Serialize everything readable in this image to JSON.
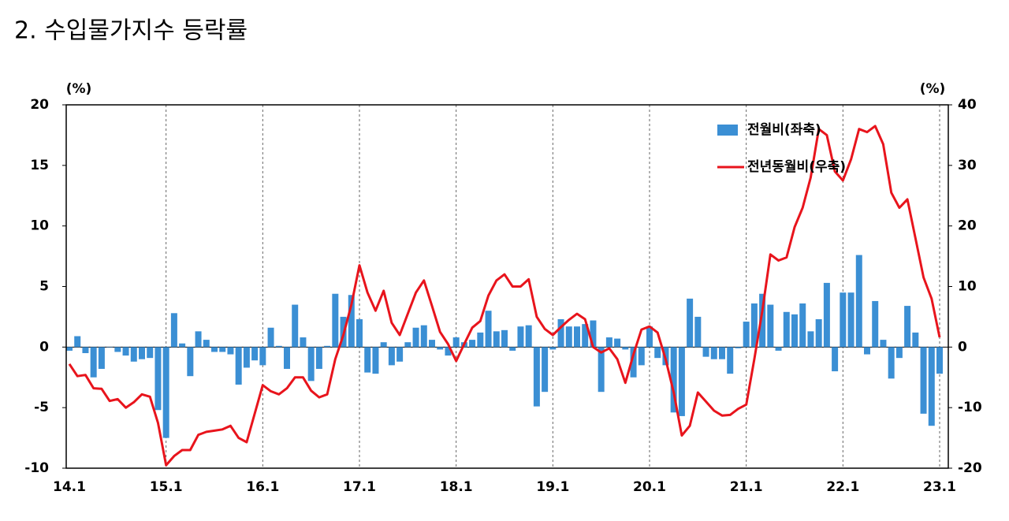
{
  "chart_data": {
    "type": "bar_line",
    "title": "2. 수입물가지수 등락률",
    "y_label": "(%)",
    "y2_label": "(%)",
    "categories": [
      "14.1",
      null,
      null,
      null,
      null,
      null,
      null,
      null,
      null,
      null,
      null,
      null,
      "15.1",
      null,
      null,
      null,
      null,
      null,
      null,
      null,
      null,
      null,
      null,
      null,
      "16.1",
      null,
      null,
      null,
      null,
      null,
      null,
      null,
      null,
      null,
      null,
      null,
      "17.1",
      null,
      null,
      null,
      null,
      null,
      null,
      null,
      null,
      null,
      null,
      null,
      "18.1",
      null,
      null,
      null,
      null,
      null,
      null,
      null,
      null,
      null,
      null,
      null,
      "19.1",
      null,
      null,
      null,
      null,
      null,
      null,
      null,
      null,
      null,
      null,
      null,
      "20.1",
      null,
      null,
      null,
      null,
      null,
      null,
      null,
      null,
      null,
      null,
      null,
      "21.1",
      null,
      null,
      null,
      null,
      null,
      null,
      null,
      null,
      null,
      null,
      null,
      "22.1",
      null,
      null,
      null,
      null,
      null,
      null,
      null,
      null,
      null,
      null,
      null,
      "23.1"
    ],
    "series": [
      {
        "name": "전월비(좌축)",
        "color": "#3b8fd4",
        "kind": "bar",
        "values": [
          -0.3,
          0.9,
          -0.5,
          -2.5,
          -1.8,
          0,
          -0.4,
          -0.7,
          -1.2,
          -1.0,
          -0.9,
          -5.2,
          -7.5,
          2.8,
          0.3,
          -2.4,
          1.3,
          0.6,
          -0.4,
          -0.4,
          -0.6,
          -3.1,
          -1.7,
          -1.1,
          -1.5,
          1.6,
          0.1,
          -1.8,
          3.5,
          0.8,
          -2.8,
          -1.8,
          0.1,
          4.4,
          2.5,
          4.3,
          2.3,
          -2.1,
          -2.2,
          0.4,
          -1.5,
          -1.2,
          0.4,
          1.6,
          1.8,
          0.6,
          -0.2,
          -0.7,
          0.8,
          0.4,
          0.6,
          1.2,
          3.0,
          1.3,
          1.4,
          -0.3,
          1.7,
          1.8,
          -4.9,
          -3.7,
          -0.2,
          2.3,
          1.7,
          1.7,
          1.9,
          2.2,
          -3.7,
          0.8,
          0.7,
          -0.2,
          -2.5,
          -1.5,
          1.7,
          -0.9,
          -1.5,
          -5.4,
          -5.7,
          4.0,
          2.5,
          -0.8,
          -1.0,
          -1.0,
          -2.2,
          -0.1,
          2.1,
          3.6,
          4.4,
          3.5,
          -0.3,
          2.9,
          2.7,
          3.6,
          1.3,
          2.3,
          5.3,
          -2.0,
          4.5,
          4.5,
          7.6,
          -0.6,
          3.8,
          0.6,
          -2.6,
          -0.9,
          3.4,
          1.2,
          -5.5,
          -6.5,
          -2.2
        ]
      },
      {
        "name": "전년동월비(우축)",
        "color": "#e8141c",
        "kind": "line",
        "axis": "y2",
        "values": [
          -2.8,
          -4.8,
          -4.6,
          -6.8,
          -6.9,
          -8.9,
          -8.6,
          -10,
          -9.1,
          -7.8,
          -8.2,
          -12.5,
          -19.5,
          -18,
          -17,
          -17,
          -14.5,
          -14,
          -13.8,
          -13.6,
          -13,
          -15,
          -15.7,
          -11,
          -6.3,
          -7.3,
          -7.8,
          -6.8,
          -5,
          -5,
          -7.2,
          -8.3,
          -7.8,
          -2,
          2,
          7,
          13.5,
          9,
          6,
          9.3,
          4,
          2,
          5.5,
          9,
          11,
          6.8,
          2.5,
          0.5,
          -2.3,
          0.5,
          3.2,
          4.3,
          8.5,
          11,
          12,
          10,
          10,
          11.2,
          5,
          3,
          2,
          3.3,
          4.5,
          5.5,
          4.6,
          0,
          -0.9,
          -0.2,
          -2,
          -5.9,
          -1.2,
          2.9,
          3.4,
          2.4,
          -2,
          -7.5,
          -14.6,
          -13,
          -7.5,
          -9,
          -10.5,
          -11.3,
          -11.2,
          -10.2,
          -9.5,
          -2,
          6,
          15.3,
          14.3,
          14.8,
          19.8,
          23,
          28,
          36,
          35,
          29,
          27.5,
          31,
          36,
          35.5,
          36.5,
          33.5,
          25.5,
          23,
          24.4,
          18,
          11.5,
          8,
          1.6
        ]
      }
    ],
    "ylim": [
      -10,
      20
    ],
    "yticks": [
      -10,
      -5,
      0,
      5,
      10,
      15,
      20
    ],
    "y2lim": [
      -20,
      40
    ],
    "y2ticks": [
      -20,
      -10,
      0,
      10,
      20,
      30,
      40
    ]
  }
}
